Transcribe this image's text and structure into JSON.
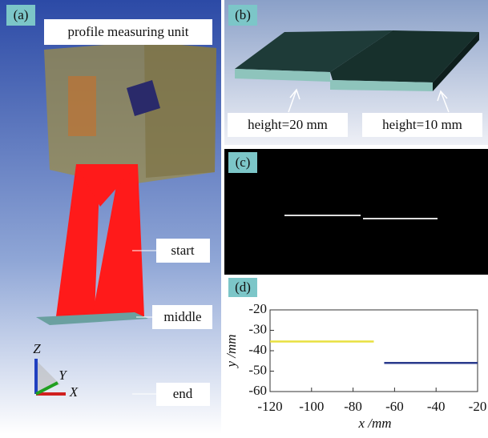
{
  "panels": {
    "a": {
      "label": "(a)",
      "unit_label": "profile measuring unit",
      "positions": [
        "start",
        "middle",
        "end"
      ],
      "axes": [
        "Z",
        "Y",
        "X"
      ]
    },
    "b": {
      "label": "(b)",
      "heights": [
        "height=20 mm",
        "height=10 mm"
      ]
    },
    "c": {
      "label": "(c)"
    },
    "d": {
      "label": "(d)"
    }
  },
  "chart_data": {
    "type": "line",
    "xlabel": "x /mm",
    "ylabel": "y /mm",
    "series": [
      {
        "color": "#e8e040",
        "x": [
          -120,
          -70
        ],
        "values": [
          -35.5,
          -35.5
        ]
      },
      {
        "color": "#2a3a8c",
        "x": [
          -65,
          -20
        ],
        "values": [
          -46,
          -46
        ]
      }
    ],
    "xlim": [
      -120,
      -20
    ],
    "xticks": [
      -120,
      -100,
      -80,
      -60,
      -40,
      -20
    ],
    "ylim": [
      -60,
      -20
    ],
    "yticks": [
      -60,
      -50,
      -40,
      -30,
      -20
    ]
  }
}
